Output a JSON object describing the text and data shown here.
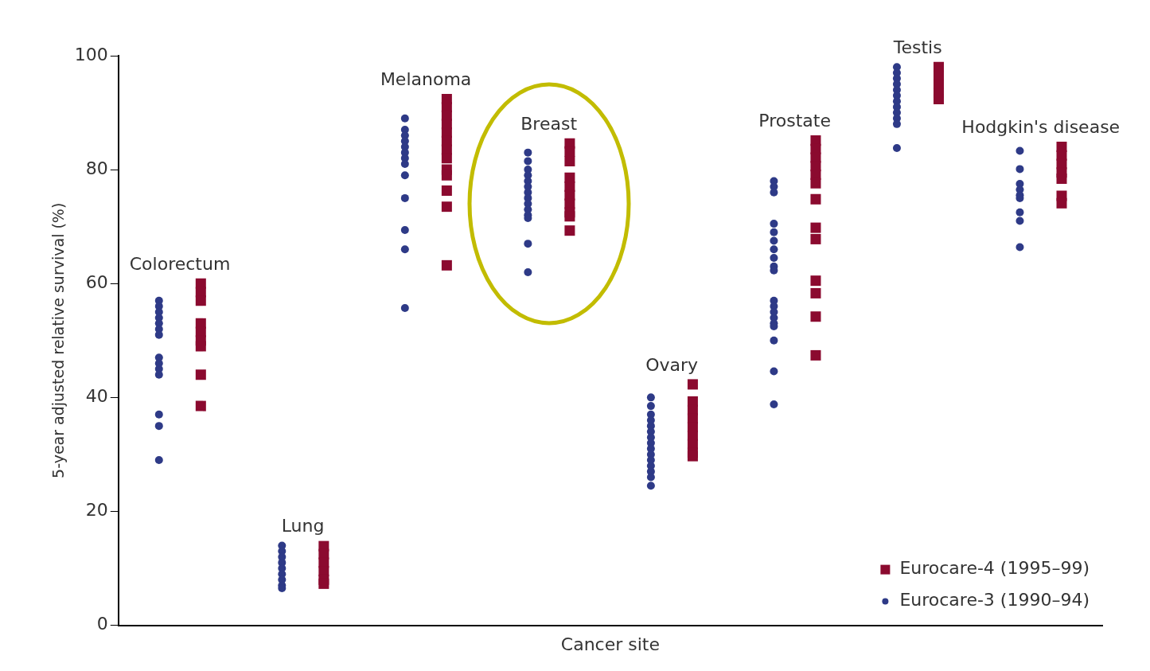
{
  "chart_data": {
    "type": "scatter",
    "xlabel": "Cancer site",
    "ylabel": "5-year adjusted relative survival (%)",
    "categories": [
      "Colorectum",
      "Lung",
      "Melanoma",
      "Breast",
      "Ovary",
      "Prostate",
      "Testis",
      "Hodgkin's disease"
    ],
    "ylim": [
      0,
      100
    ],
    "yticks": [
      0,
      20,
      40,
      60,
      80,
      100
    ],
    "grid": false,
    "legend": "bottom right",
    "series": [
      {
        "name": "Eurocare-4 (1995–99)",
        "color": "#8b0a2f",
        "marker": "square",
        "x": [
          "Colorectum",
          "Colorectum",
          "Colorectum",
          "Colorectum",
          "Colorectum",
          "Colorectum",
          "Colorectum",
          "Colorectum",
          "Colorectum",
          "Lung",
          "Lung",
          "Lung",
          "Lung",
          "Lung",
          "Lung",
          "Melanoma",
          "Melanoma",
          "Melanoma",
          "Melanoma",
          "Melanoma",
          "Melanoma",
          "Melanoma",
          "Melanoma",
          "Melanoma",
          "Melanoma",
          "Melanoma",
          "Melanoma",
          "Melanoma",
          "Breast",
          "Breast",
          "Breast",
          "Breast",
          "Breast",
          "Breast",
          "Breast",
          "Breast",
          "Breast",
          "Breast",
          "Ovary",
          "Ovary",
          "Ovary",
          "Ovary",
          "Ovary",
          "Ovary",
          "Ovary",
          "Ovary",
          "Ovary",
          "Prostate",
          "Prostate",
          "Prostate",
          "Prostate",
          "Prostate",
          "Prostate",
          "Prostate",
          "Prostate",
          "Prostate",
          "Prostate",
          "Prostate",
          "Prostate",
          "Prostate",
          "Testis",
          "Testis",
          "Testis",
          "Testis",
          "Testis",
          "Hodgkin's disease",
          "Hodgkin's disease",
          "Hodgkin's disease",
          "Hodgkin's disease",
          "Hodgkin's disease",
          "Hodgkin's disease",
          "Hodgkin's disease"
        ],
        "values": [
          60,
          58.5,
          57,
          53,
          51.5,
          50,
          49,
          44,
          38.5,
          13.9,
          12.5,
          11,
          9.5,
          8,
          7.3,
          92.4,
          91,
          89.5,
          88,
          86.5,
          85,
          83.5,
          82,
          80,
          79,
          76.3,
          73.5,
          63.2,
          84.6,
          83.2,
          81.5,
          78.6,
          77,
          75.5,
          74,
          72.5,
          71.8,
          69.3,
          42.3,
          39.3,
          37.8,
          36.3,
          34.8,
          33.3,
          31.8,
          30.3,
          29.7,
          85.1,
          83.6,
          82.1,
          80.6,
          79.1,
          77.6,
          74.8,
          69.8,
          67.8,
          60.5,
          58.3,
          54.2,
          47.4,
          98,
          96.5,
          95,
          93.5,
          92.4,
          84,
          82.5,
          81,
          79.5,
          78.4,
          75.4,
          74.1
        ]
      },
      {
        "name": "Eurocare-3 (1990–94)",
        "color": "#2e3a87",
        "marker": "circle",
        "x": [
          "Colorectum",
          "Colorectum",
          "Colorectum",
          "Colorectum",
          "Colorectum",
          "Colorectum",
          "Colorectum",
          "Colorectum",
          "Colorectum",
          "Colorectum",
          "Colorectum",
          "Colorectum",
          "Colorectum",
          "Colorectum",
          "Lung",
          "Lung",
          "Lung",
          "Lung",
          "Lung",
          "Lung",
          "Lung",
          "Lung",
          "Lung",
          "Melanoma",
          "Melanoma",
          "Melanoma",
          "Melanoma",
          "Melanoma",
          "Melanoma",
          "Melanoma",
          "Melanoma",
          "Melanoma",
          "Melanoma",
          "Melanoma",
          "Melanoma",
          "Melanoma",
          "Breast",
          "Breast",
          "Breast",
          "Breast",
          "Breast",
          "Breast",
          "Breast",
          "Breast",
          "Breast",
          "Breast",
          "Breast",
          "Breast",
          "Breast",
          "Breast",
          "Ovary",
          "Ovary",
          "Ovary",
          "Ovary",
          "Ovary",
          "Ovary",
          "Ovary",
          "Ovary",
          "Ovary",
          "Ovary",
          "Ovary",
          "Ovary",
          "Ovary",
          "Ovary",
          "Ovary",
          "Prostate",
          "Prostate",
          "Prostate",
          "Prostate",
          "Prostate",
          "Prostate",
          "Prostate",
          "Prostate",
          "Prostate",
          "Prostate",
          "Prostate",
          "Prostate",
          "Prostate",
          "Prostate",
          "Prostate",
          "Prostate",
          "Prostate",
          "Prostate",
          "Prostate",
          "Testis",
          "Testis",
          "Testis",
          "Testis",
          "Testis",
          "Testis",
          "Testis",
          "Testis",
          "Testis",
          "Testis",
          "Testis",
          "Testis",
          "Hodgkin's disease",
          "Hodgkin's disease",
          "Hodgkin's disease",
          "Hodgkin's disease",
          "Hodgkin's disease",
          "Hodgkin's disease",
          "Hodgkin's disease",
          "Hodgkin's disease",
          "Hodgkin's disease"
        ],
        "values": [
          57,
          56,
          55,
          54,
          53,
          52,
          51,
          47,
          46,
          45,
          44,
          37,
          35,
          29,
          14,
          13,
          12,
          11,
          10,
          9,
          8,
          7,
          6.5,
          89,
          87,
          86,
          85,
          84,
          83,
          82,
          81,
          79,
          75,
          69.4,
          66,
          55.7,
          83,
          81.5,
          80,
          79,
          78,
          77,
          76,
          75,
          74,
          73,
          72,
          71.5,
          67,
          62,
          40,
          38.5,
          37,
          36,
          35,
          34,
          33,
          32,
          31,
          30,
          29,
          28,
          27,
          26,
          24.5,
          78,
          77,
          76,
          70.5,
          69,
          67.5,
          66,
          64.5,
          63,
          62.3,
          57,
          56,
          55,
          54,
          53,
          52.5,
          50,
          44.6,
          38.8,
          98,
          97,
          96,
          95,
          94,
          93,
          92,
          91,
          90,
          89,
          88,
          83.8,
          83.3,
          80.1,
          77.5,
          76.5,
          75.5,
          75,
          72.5,
          71,
          66.4
        ]
      }
    ]
  }
}
